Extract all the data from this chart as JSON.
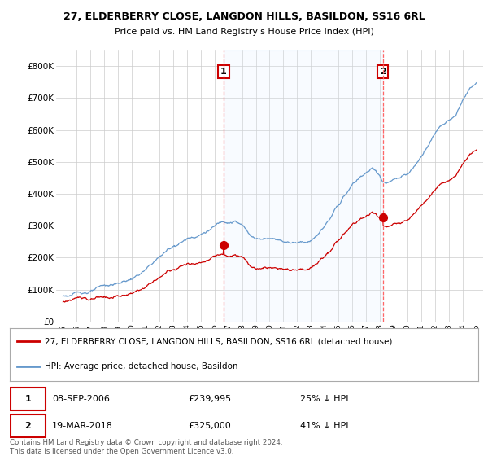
{
  "title_line1": "27, ELDERBERRY CLOSE, LANGDON HILLS, BASILDON, SS16 6RL",
  "title_line2": "Price paid vs. HM Land Registry's House Price Index (HPI)",
  "ylim": [
    0,
    850000
  ],
  "yticks": [
    0,
    100000,
    200000,
    300000,
    400000,
    500000,
    600000,
    700000,
    800000
  ],
  "ytick_labels": [
    "£0",
    "£100K",
    "£200K",
    "£300K",
    "£400K",
    "£500K",
    "£600K",
    "£700K",
    "£800K"
  ],
  "sale1_date": "08-SEP-2006",
  "sale1_price": 239995,
  "sale1_year": 2006.667,
  "sale2_date": "19-MAR-2018",
  "sale2_price": 325000,
  "sale2_year": 2018.208,
  "sale1_pct": "25% ↓ HPI",
  "sale2_pct": "41% ↓ HPI",
  "legend_red": "27, ELDERBERRY CLOSE, LANGDON HILLS, BASILDON, SS16 6RL (detached house)",
  "legend_blue": "HPI: Average price, detached house, Basildon",
  "footer": "Contains HM Land Registry data © Crown copyright and database right 2024.\nThis data is licensed under the Open Government Licence v3.0.",
  "red_color": "#cc0000",
  "blue_color": "#6699cc",
  "shade_color": "#ddeeff",
  "vline_color": "#ff6666",
  "background_color": "#ffffff",
  "grid_color": "#cccccc",
  "xlim_left": 1994.5,
  "xlim_right": 2025.5
}
